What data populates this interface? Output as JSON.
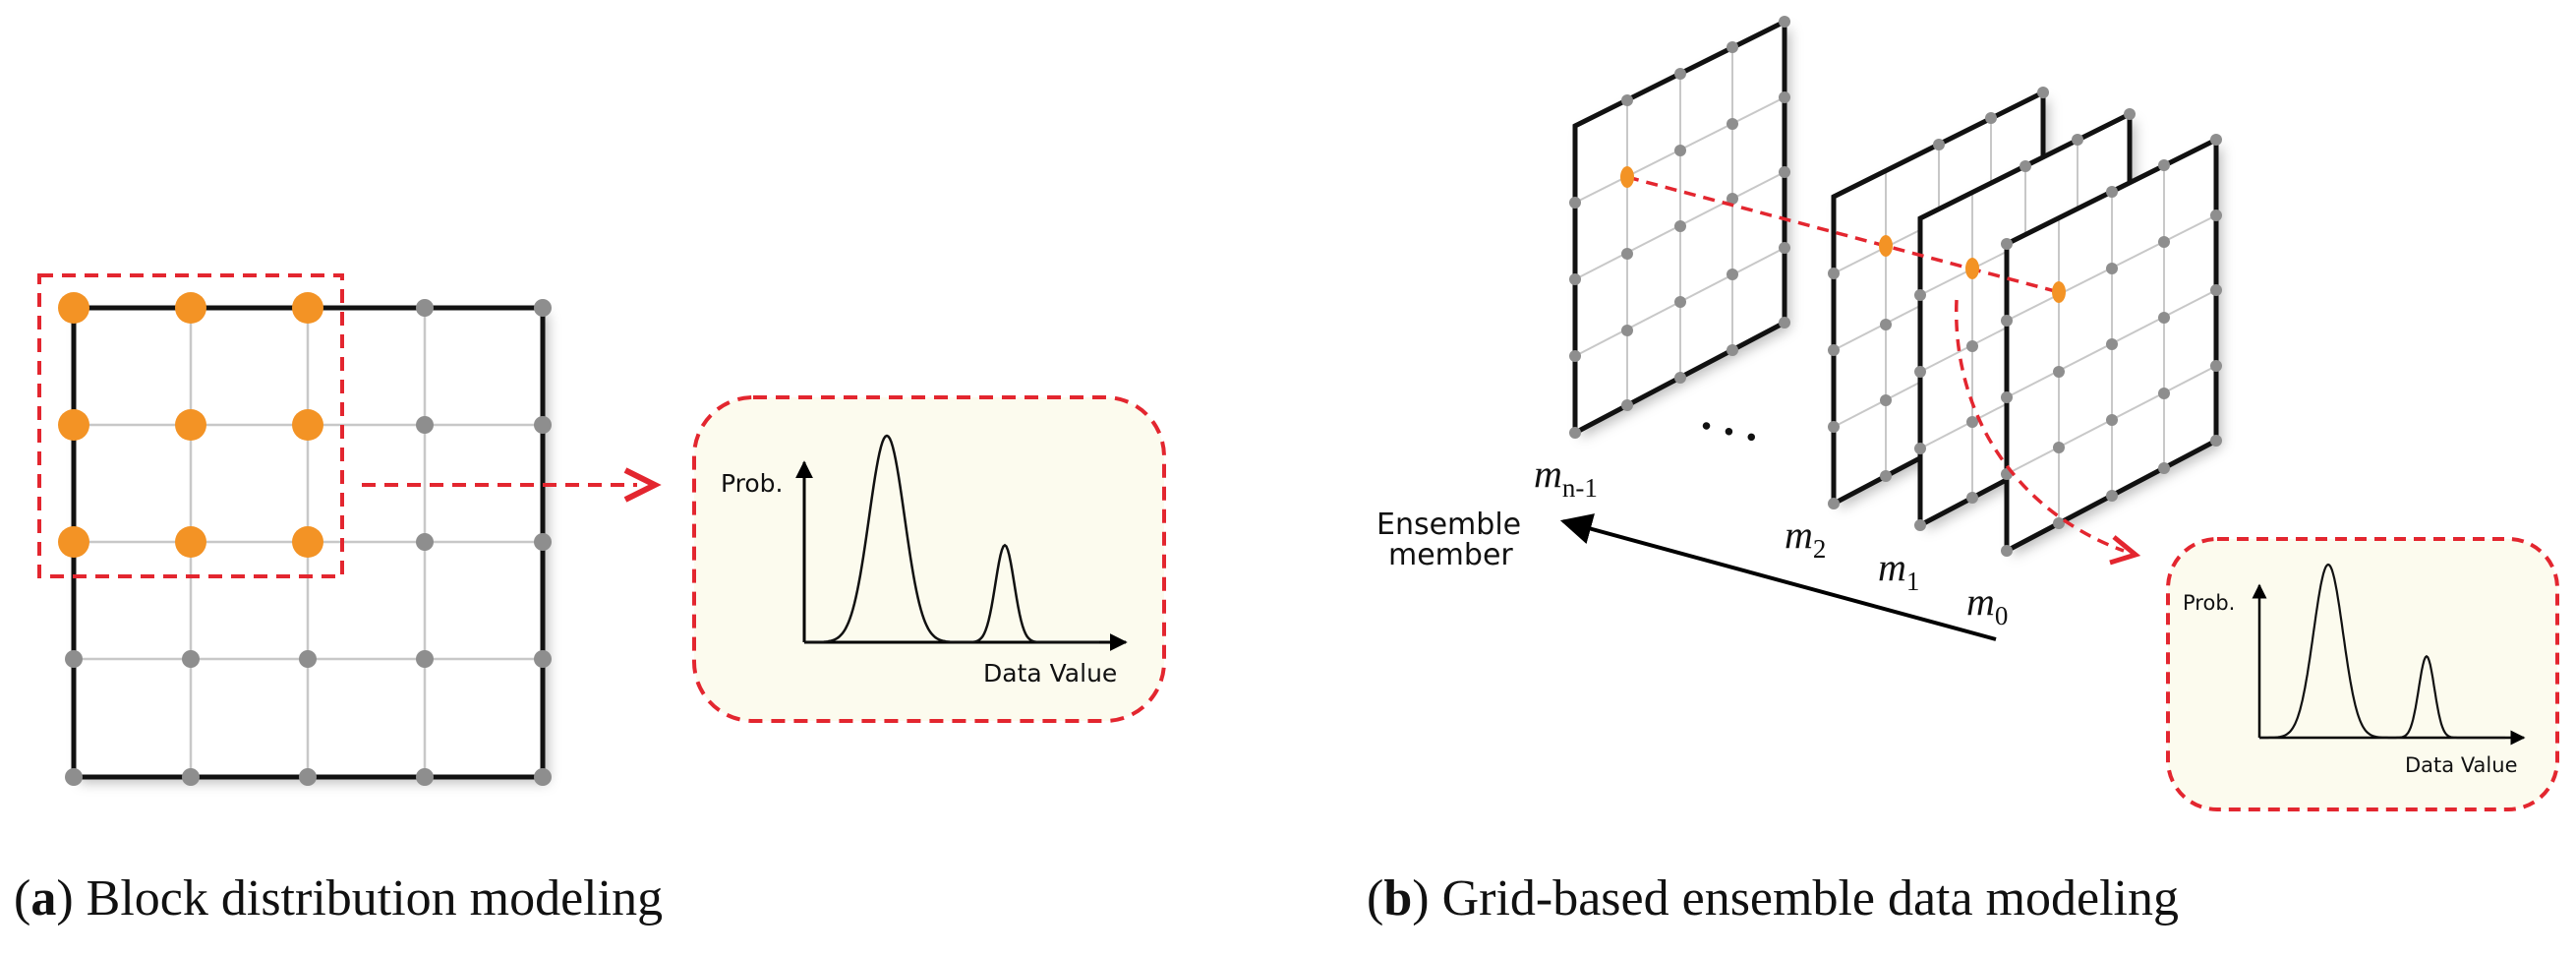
{
  "panel_a": {
    "arrow_target": "pdf-box",
    "pdf": {
      "y_label": "Prob.",
      "x_label": "Data Value"
    },
    "caption": {
      "open": "(",
      "letter": "a",
      "close": ")",
      "text": " Block distribution modeling"
    }
  },
  "panel_b": {
    "members": {
      "m_n1": {
        "base": "m",
        "sub": "n-1"
      },
      "m2": {
        "base": "m",
        "sub": "2"
      },
      "m1": {
        "base": "m",
        "sub": "1"
      },
      "m0": {
        "base": "m",
        "sub": "0"
      }
    },
    "ellipsis": "• • •",
    "axis_label_line1": "Ensemble",
    "axis_label_line2": "member",
    "pdf": {
      "y_label": "Prob.",
      "x_label": "Data Value"
    },
    "caption": {
      "open": "(",
      "letter": "b",
      "close": ")",
      "text": " Grid-based ensemble data modeling"
    }
  },
  "colors": {
    "highlight": "#f39325",
    "grid_point": "#8e8e8e",
    "dashed": "#e3262f",
    "pdf_fill": "#fcfbee"
  }
}
